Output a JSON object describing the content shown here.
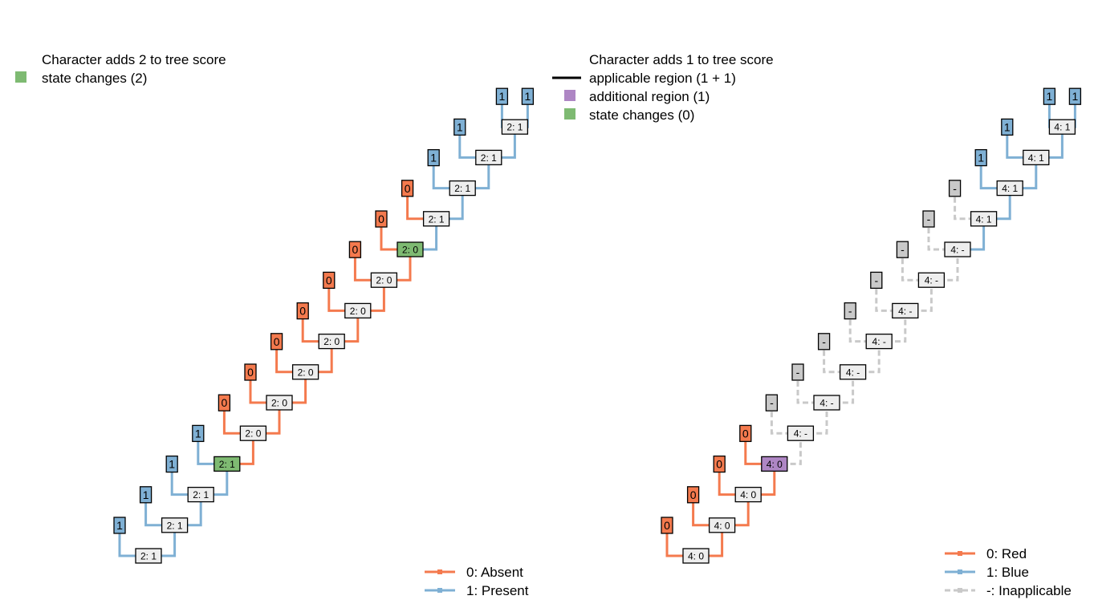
{
  "colors": {
    "absent": "#F47A4E",
    "present": "#7FB0D4",
    "inapplicable": "#C9C9C9",
    "node_fill": "#EEEEEE",
    "change_fill": "#7EBA72",
    "additional_fill": "#AE86C4",
    "tip_inapplicable_fill": "#C9C9C9"
  },
  "left_panel": {
    "legend": {
      "title": "Character adds 2 to tree score",
      "items": [
        {
          "label": "state changes (2)",
          "symbol": "square",
          "color": "#7EBA72"
        }
      ]
    },
    "tips": [
      "1",
      "1",
      "1",
      "1",
      "0",
      "0",
      "0",
      "0",
      "0",
      "0",
      "0",
      "0",
      "1",
      "1",
      "1",
      "1"
    ],
    "nodes": [
      "2: 1",
      "2: 1",
      "2: 1",
      "2: 1",
      "2: 0",
      "2: 0",
      "2: 0",
      "2: 0",
      "2: 0",
      "2: 0",
      "2: 0",
      "2: 1",
      "2: 1",
      "2: 1",
      "2: 1"
    ],
    "highlight_nodes": [
      4,
      11
    ],
    "state_legend": [
      {
        "label": "0: Absent",
        "color": "#F47A4E"
      },
      {
        "label": "1: Present",
        "color": "#7FB0D4"
      }
    ]
  },
  "right_panel": {
    "legend": {
      "title": "Character adds 1 to tree score",
      "items": [
        {
          "label": "applicable region (1 + 1)",
          "symbol": "line",
          "color": "#000000"
        },
        {
          "label": "additional region (1)",
          "symbol": "square",
          "color": "#AE86C4"
        },
        {
          "label": "state changes (0)",
          "symbol": "square",
          "color": "#7EBA72"
        }
      ]
    },
    "tips": [
      "1",
      "1",
      "1",
      "1",
      "-",
      "-",
      "-",
      "-",
      "-",
      "-",
      "-",
      "-",
      "0",
      "0",
      "0",
      "0"
    ],
    "nodes": [
      "4: 1",
      "4: 1",
      "4: 1",
      "4: 1",
      "4: -",
      "4: -",
      "4: -",
      "4: -",
      "4: -",
      "4: -",
      "4: -",
      "4: 0",
      "4: 0",
      "4: 0",
      "4: 0"
    ],
    "additional_nodes": [
      11
    ],
    "state_legend": [
      {
        "label": "0: Red",
        "color": "#F47A4E"
      },
      {
        "label": "1: Blue",
        "color": "#7FB0D4"
      },
      {
        "label": "-: Inapplicable",
        "color": "#C9C9C9"
      }
    ]
  }
}
